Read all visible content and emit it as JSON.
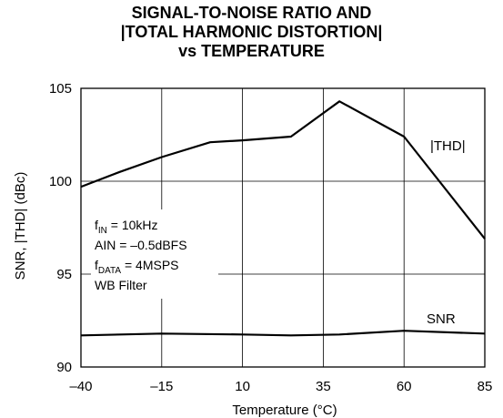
{
  "chart_data": {
    "type": "line",
    "title_lines": [
      "SIGNAL-TO-NOISE RATIO AND",
      "|TOTAL HARMONIC DISTORTION|",
      "vs TEMPERATURE"
    ],
    "xlabel": "Temperature (°C)",
    "ylabel": "SNR, |THD| (dBc)",
    "xlim": [
      -40,
      85
    ],
    "ylim": [
      90,
      105
    ],
    "xticks": [
      -40,
      -15,
      10,
      35,
      60,
      85
    ],
    "xtick_labels": [
      "–40",
      "–15",
      "10",
      "35",
      "60",
      "85"
    ],
    "yticks": [
      90,
      95,
      100,
      105
    ],
    "ytick_labels": [
      "90",
      "95",
      "100",
      "105"
    ],
    "grid": true,
    "series": [
      {
        "name": "|THD|",
        "x": [
          -40,
          -28,
          -15,
          0,
          10,
          25,
          40,
          60,
          85
        ],
        "y": [
          99.7,
          100.5,
          101.3,
          102.1,
          102.2,
          102.4,
          104.3,
          102.4,
          96.9
        ]
      },
      {
        "name": "SNR",
        "x": [
          -40,
          -15,
          10,
          25,
          40,
          60,
          85
        ],
        "y": [
          91.7,
          91.8,
          91.75,
          91.7,
          91.75,
          91.95,
          91.8
        ]
      }
    ],
    "annotation_lines": [
      {
        "main": "f",
        "sub": "IN",
        "rest": " = 10kHz"
      },
      {
        "main": "AIN = –0.5dBFS",
        "sub": "",
        "rest": ""
      },
      {
        "main": "f",
        "sub": "DATA",
        "rest": " = 4MSPS"
      },
      {
        "main": "WB Filter",
        "sub": "",
        "rest": ""
      }
    ]
  }
}
